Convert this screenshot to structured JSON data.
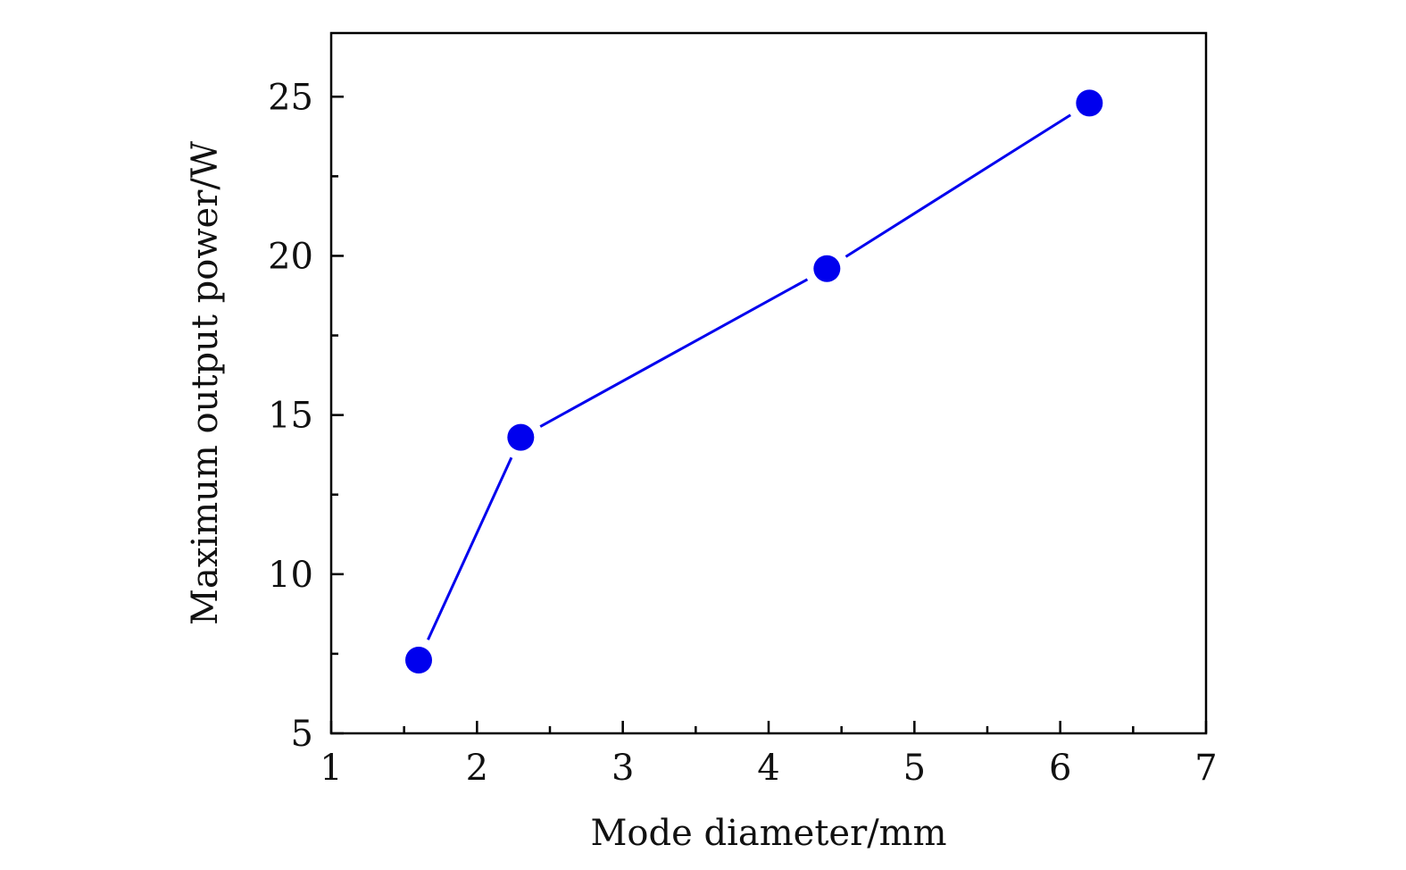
{
  "chart_data": {
    "type": "line",
    "title": "",
    "xlabel": "Mode diameter/mm",
    "ylabel": "Maximum output power/W",
    "xlim": [
      1,
      7
    ],
    "ylim": [
      5,
      27
    ],
    "x_ticks": [
      1,
      2,
      3,
      4,
      5,
      6,
      7
    ],
    "y_ticks": [
      5,
      10,
      15,
      20,
      25
    ],
    "x_minor_step": 0.5,
    "y_minor_step": 2.5,
    "grid": false,
    "series": [
      {
        "color": "#0000ee",
        "marker": "circle",
        "x": [
          1.6,
          2.3,
          4.4,
          6.2
        ],
        "y": [
          7.3,
          14.3,
          19.6,
          24.8
        ]
      }
    ]
  }
}
